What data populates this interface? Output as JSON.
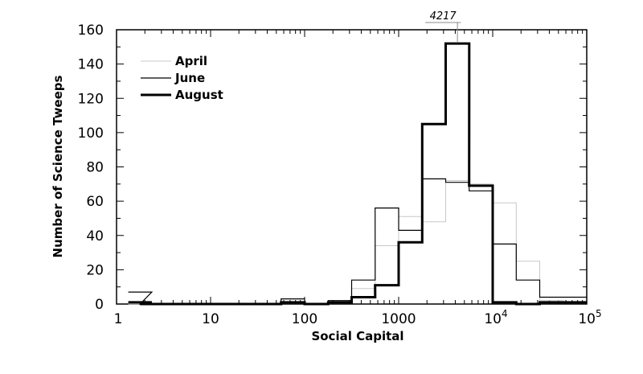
{
  "chart_data": {
    "type": "line",
    "title": "",
    "xlabel": "Social Capital",
    "ylabel": "Number of Science Tweeps",
    "xscale": "log",
    "xlim": [
      1,
      100000
    ],
    "ylim": [
      0,
      160
    ],
    "grid": false,
    "legend_position": "top-left",
    "x_ticks": [
      {
        "value": 1,
        "label": "1"
      },
      {
        "value": 10,
        "label": "10"
      },
      {
        "value": 100,
        "label": "100"
      },
      {
        "value": 1000,
        "label": "1000"
      },
      {
        "value": 10000,
        "base": "10",
        "exp": "4"
      },
      {
        "value": 100000,
        "base": "10",
        "exp": "5"
      }
    ],
    "y_ticks": [
      "0",
      "20",
      "40",
      "60",
      "80",
      "100",
      "120",
      "140",
      "160"
    ],
    "bin_edges": [
      1.3335,
      1.7783,
      3.1623,
      5.6234,
      10,
      17.783,
      31.623,
      56.234,
      100,
      177.83,
      316.23,
      562.34,
      1000,
      1778.3,
      3162.3,
      5623.4,
      10000,
      17783,
      31623,
      56234
    ],
    "series": [
      {
        "name": "April",
        "color": "#c8c8c8",
        "width": 1,
        "values": [
          0,
          0,
          0,
          0,
          0,
          0,
          0,
          1,
          0,
          1,
          9,
          34,
          51,
          48,
          72,
          70,
          59,
          25,
          2,
          1
        ]
      },
      {
        "name": "June",
        "color": "#000000",
        "width": 1.2,
        "values": [
          7,
          0,
          0,
          0,
          0,
          0,
          0,
          3,
          0,
          2,
          14,
          56,
          43,
          73,
          71,
          66,
          35,
          14,
          4,
          4
        ]
      },
      {
        "name": "August",
        "color": "#000000",
        "width": 3,
        "values": [
          1,
          0,
          0,
          0,
          0,
          0,
          0,
          1,
          0,
          1,
          4,
          11,
          36,
          105,
          152,
          69,
          1,
          0,
          1,
          1
        ]
      }
    ],
    "annotations": [
      {
        "text": "4217",
        "x": 4217
      }
    ]
  }
}
